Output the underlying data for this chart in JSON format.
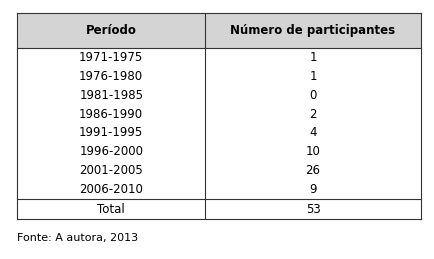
{
  "col_headers": [
    "Período",
    "Número de participantes"
  ],
  "rows": [
    [
      "1971-1975",
      "1"
    ],
    [
      "1976-1980",
      "1"
    ],
    [
      "1981-1985",
      "0"
    ],
    [
      "1986-1990",
      "2"
    ],
    [
      "1991-1995",
      "4"
    ],
    [
      "1996-2000",
      "10"
    ],
    [
      "2001-2005",
      "26"
    ],
    [
      "2006-2010",
      "9"
    ]
  ],
  "total_row": [
    "Total",
    "53"
  ],
  "footer": "Fonte: A autora, 2013",
  "header_bg": "#d4d4d4",
  "table_bg": "#ffffff",
  "border_color": "#333333",
  "header_fontsize": 8.5,
  "body_fontsize": 8.5,
  "footer_fontsize": 8,
  "col_split": 0.465,
  "fig_width": 4.34,
  "fig_height": 2.59,
  "dpi": 100
}
